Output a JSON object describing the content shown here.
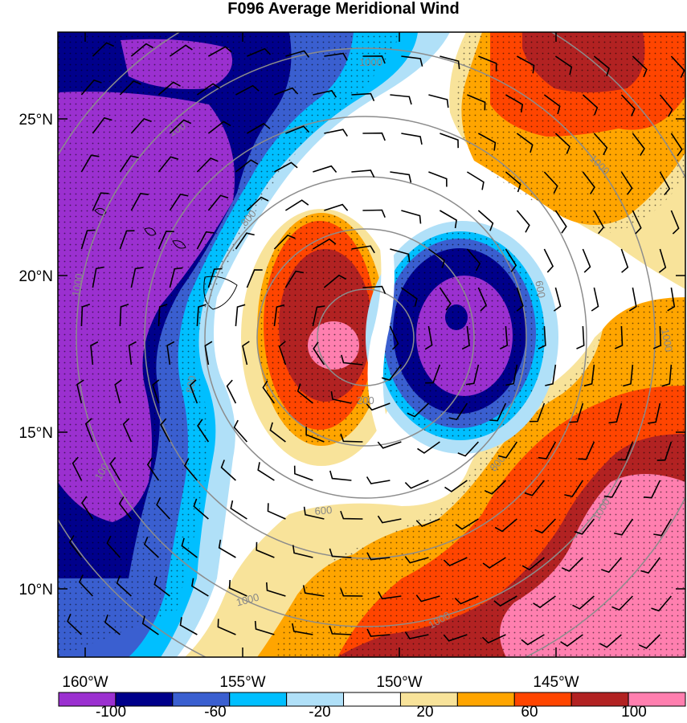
{
  "title": "F096 Average Meridional Wind",
  "lat_ticks": [
    "25°N",
    "20°N",
    "15°N",
    "10°N"
  ],
  "lon_ticks": [
    "160°W",
    "155°W",
    "150°W",
    "145°W"
  ],
  "colorbar": {
    "labels": [
      "-100",
      "-60",
      "-20",
      "20",
      "60",
      "100"
    ],
    "colors": [
      "#9b30d0",
      "#00008b",
      "#3a5fd0",
      "#00bfff",
      "#b0e0f8",
      "#ffffff",
      "#f8e39a",
      "#ffa500",
      "#ff4500",
      "#b22222",
      "#ff7faf"
    ]
  },
  "contour_labels": [
    "1000",
    "1000",
    "1000",
    "1000",
    "1000",
    "1000",
    "1000",
    "800",
    "800",
    "800",
    "600",
    "600",
    "200",
    "100",
    "100"
  ]
}
